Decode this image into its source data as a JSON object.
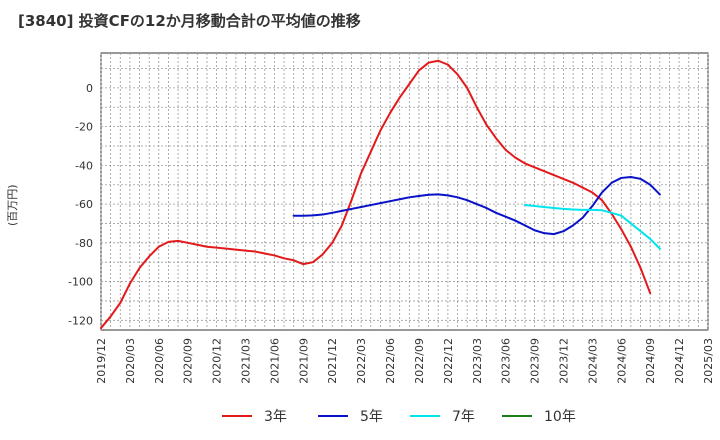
{
  "chart_data": {
    "type": "line",
    "title": "[3840]  投資CFの12か月移動合計の平均値の推移",
    "ylabel": "(百万円)",
    "xlabel": "",
    "ylim": [
      -125,
      18
    ],
    "y_ticks": [
      0,
      -20,
      -40,
      -60,
      -80,
      -100,
      -120
    ],
    "x_ticks": [
      "2019/12",
      "2020/03",
      "2020/06",
      "2020/09",
      "2020/12",
      "2021/03",
      "2021/06",
      "2021/09",
      "2021/12",
      "2022/03",
      "2022/06",
      "2022/09",
      "2022/12",
      "2023/03",
      "2023/06",
      "2023/09",
      "2023/12",
      "2024/03",
      "2024/06",
      "2024/09",
      "2024/12",
      "2025/03"
    ],
    "grid": true,
    "legend_position": "bottom",
    "series": [
      {
        "name": "3年",
        "color": "#e31a1c",
        "points": [
          [
            "2019/12",
            -124
          ],
          [
            "2020/01",
            -118
          ],
          [
            "2020/02",
            -111
          ],
          [
            "2020/03",
            -101
          ],
          [
            "2020/04",
            -93
          ],
          [
            "2020/05",
            -87
          ],
          [
            "2020/06",
            -82
          ],
          [
            "2020/07",
            -79.5
          ],
          [
            "2020/08",
            -79
          ],
          [
            "2020/09",
            -80
          ],
          [
            "2020/10",
            -81
          ],
          [
            "2020/11",
            -82
          ],
          [
            "2020/12",
            -82.5
          ],
          [
            "2021/01",
            -83
          ],
          [
            "2021/02",
            -83.5
          ],
          [
            "2021/03",
            -84
          ],
          [
            "2021/04",
            -84.5
          ],
          [
            "2021/05",
            -85.5
          ],
          [
            "2021/06",
            -86.5
          ],
          [
            "2021/07",
            -88
          ],
          [
            "2021/08",
            -89
          ],
          [
            "2021/09",
            -91
          ],
          [
            "2021/10",
            -90
          ],
          [
            "2021/11",
            -86
          ],
          [
            "2021/12",
            -80
          ],
          [
            "2022/01",
            -71
          ],
          [
            "2022/02",
            -58
          ],
          [
            "2022/03",
            -44
          ],
          [
            "2022/04",
            -33
          ],
          [
            "2022/05",
            -22
          ],
          [
            "2022/06",
            -13
          ],
          [
            "2022/07",
            -5
          ],
          [
            "2022/08",
            2
          ],
          [
            "2022/09",
            9
          ],
          [
            "2022/10",
            13
          ],
          [
            "2022/11",
            14
          ],
          [
            "2022/12",
            12
          ],
          [
            "2023/01",
            7
          ],
          [
            "2023/02",
            0
          ],
          [
            "2023/03",
            -10
          ],
          [
            "2023/04",
            -19
          ],
          [
            "2023/05",
            -26
          ],
          [
            "2023/06",
            -32
          ],
          [
            "2023/07",
            -36
          ],
          [
            "2023/08",
            -39
          ],
          [
            "2023/09",
            -41
          ],
          [
            "2023/10",
            -43
          ],
          [
            "2023/11",
            -45
          ],
          [
            "2023/12",
            -47
          ],
          [
            "2024/01",
            -49
          ],
          [
            "2024/02",
            -51.5
          ],
          [
            "2024/03",
            -54
          ],
          [
            "2024/04",
            -58
          ],
          [
            "2024/05",
            -65
          ],
          [
            "2024/06",
            -73
          ],
          [
            "2024/07",
            -82
          ],
          [
            "2024/08",
            -93
          ],
          [
            "2024/09",
            -106
          ]
        ]
      },
      {
        "name": "5年",
        "color": "#0a12c8",
        "points": [
          [
            "2021/08",
            -66
          ],
          [
            "2021/09",
            -66
          ],
          [
            "2021/10",
            -65.8
          ],
          [
            "2021/11",
            -65.4
          ],
          [
            "2021/12",
            -64.5
          ],
          [
            "2022/01",
            -63.5
          ],
          [
            "2022/02",
            -62.5
          ],
          [
            "2022/03",
            -61.5
          ],
          [
            "2022/04",
            -60.5
          ],
          [
            "2022/05",
            -59.5
          ],
          [
            "2022/06",
            -58.5
          ],
          [
            "2022/07",
            -57.5
          ],
          [
            "2022/08",
            -56.5
          ],
          [
            "2022/09",
            -55.8
          ],
          [
            "2022/10",
            -55.2
          ],
          [
            "2022/11",
            -55
          ],
          [
            "2022/12",
            -55.5
          ],
          [
            "2023/01",
            -56.5
          ],
          [
            "2023/02",
            -58
          ],
          [
            "2023/03",
            -60
          ],
          [
            "2023/04",
            -62
          ],
          [
            "2023/05",
            -64.5
          ],
          [
            "2023/06",
            -66.5
          ],
          [
            "2023/07",
            -68.5
          ],
          [
            "2023/08",
            -71
          ],
          [
            "2023/09",
            -73.5
          ],
          [
            "2023/10",
            -75
          ],
          [
            "2023/11",
            -75.5
          ],
          [
            "2023/12",
            -74
          ],
          [
            "2024/01",
            -71
          ],
          [
            "2024/02",
            -67
          ],
          [
            "2024/03",
            -61
          ],
          [
            "2024/04",
            -54
          ],
          [
            "2024/05",
            -49
          ],
          [
            "2024/06",
            -46.5
          ],
          [
            "2024/07",
            -46
          ],
          [
            "2024/08",
            -47
          ],
          [
            "2024/09",
            -50
          ],
          [
            "2024/10",
            -55
          ]
        ]
      },
      {
        "name": "7年",
        "color": "#00e5ee",
        "points": [
          [
            "2023/08",
            -60.5
          ],
          [
            "2023/09",
            -61
          ],
          [
            "2023/10",
            -61.5
          ],
          [
            "2023/11",
            -62
          ],
          [
            "2023/12",
            -62.5
          ],
          [
            "2024/01",
            -62.8
          ],
          [
            "2024/02",
            -63
          ],
          [
            "2024/03",
            -63
          ],
          [
            "2024/04",
            -63.2
          ],
          [
            "2024/05",
            -64.5
          ],
          [
            "2024/06",
            -66
          ],
          [
            "2024/07",
            -70
          ],
          [
            "2024/08",
            -74
          ],
          [
            "2024/09",
            -78
          ],
          [
            "2024/10",
            -83
          ]
        ]
      },
      {
        "name": "10年",
        "color": "#1a7f1a",
        "points": []
      }
    ]
  }
}
